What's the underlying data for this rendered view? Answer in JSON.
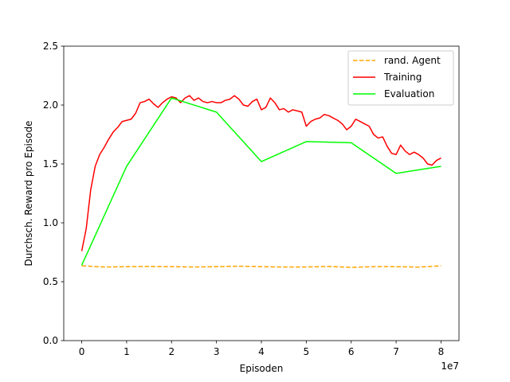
{
  "chart_data": {
    "type": "line",
    "title": "",
    "xlabel": "Episoden",
    "ylabel": "Durchsch. Reward pro Episode",
    "x_offset_label": "1e7",
    "xlim": [
      -0.4,
      8.4
    ],
    "ylim": [
      0.0,
      2.5
    ],
    "x_ticks": [
      0,
      1,
      2,
      3,
      4,
      5,
      6,
      7,
      8
    ],
    "x_tick_labels": [
      "0",
      "1",
      "2",
      "3",
      "4",
      "5",
      "6",
      "7",
      "8"
    ],
    "y_ticks": [
      0.0,
      0.5,
      1.0,
      1.5,
      2.0,
      2.5
    ],
    "y_tick_labels": [
      "0.0",
      "0.5",
      "1.0",
      "1.5",
      "2.0",
      "2.5"
    ],
    "grid": false,
    "legend_position": "top-right",
    "series": [
      {
        "name": "rand. Agent",
        "color": "#ffa500",
        "style": "dashed",
        "x": [
          0,
          0.5,
          1,
          1.5,
          2,
          2.5,
          3,
          3.5,
          4,
          4.5,
          5,
          5.5,
          6,
          6.5,
          7,
          7.5,
          8
        ],
        "y": [
          0.635,
          0.625,
          0.628,
          0.63,
          0.628,
          0.625,
          0.628,
          0.632,
          0.628,
          0.625,
          0.625,
          0.63,
          0.622,
          0.628,
          0.628,
          0.624,
          0.635
        ]
      },
      {
        "name": "Training",
        "color": "#ff0000",
        "style": "solid",
        "x": [
          0,
          0.1,
          0.2,
          0.3,
          0.4,
          0.5,
          0.6,
          0.7,
          0.8,
          0.9,
          1.0,
          1.1,
          1.2,
          1.3,
          1.4,
          1.5,
          1.6,
          1.7,
          1.8,
          1.9,
          2.0,
          2.1,
          2.2,
          2.3,
          2.4,
          2.5,
          2.6,
          2.7,
          2.8,
          2.9,
          3.0,
          3.1,
          3.2,
          3.3,
          3.4,
          3.5,
          3.6,
          3.7,
          3.8,
          3.9,
          4.0,
          4.1,
          4.2,
          4.3,
          4.4,
          4.5,
          4.6,
          4.7,
          4.8,
          4.9,
          5.0,
          5.1,
          5.2,
          5.3,
          5.4,
          5.5,
          5.6,
          5.7,
          5.8,
          5.9,
          6.0,
          6.1,
          6.2,
          6.3,
          6.4,
          6.5,
          6.6,
          6.7,
          6.8,
          6.9,
          7.0,
          7.1,
          7.2,
          7.3,
          7.4,
          7.5,
          7.6,
          7.7,
          7.8,
          7.9,
          8.0
        ],
        "y": [
          0.76,
          0.95,
          1.28,
          1.48,
          1.58,
          1.64,
          1.71,
          1.77,
          1.81,
          1.86,
          1.87,
          1.88,
          1.93,
          2.02,
          2.03,
          2.05,
          2.01,
          1.98,
          2.02,
          2.05,
          2.07,
          2.06,
          2.02,
          2.06,
          2.08,
          2.04,
          2.06,
          2.03,
          2.02,
          2.03,
          2.02,
          2.02,
          2.04,
          2.05,
          2.08,
          2.05,
          2.0,
          1.99,
          2.03,
          2.05,
          1.96,
          1.98,
          2.06,
          2.02,
          1.96,
          1.97,
          1.94,
          1.96,
          1.95,
          1.94,
          1.82,
          1.86,
          1.88,
          1.89,
          1.92,
          1.91,
          1.89,
          1.87,
          1.84,
          1.79,
          1.82,
          1.88,
          1.86,
          1.84,
          1.82,
          1.75,
          1.72,
          1.73,
          1.65,
          1.59,
          1.58,
          1.66,
          1.61,
          1.58,
          1.6,
          1.58,
          1.55,
          1.5,
          1.49,
          1.53,
          1.55
        ]
      },
      {
        "name": "Evaluation",
        "color": "#00ff00",
        "style": "solid",
        "x": [
          0,
          1,
          2,
          3,
          4,
          5,
          6,
          7,
          8
        ],
        "y": [
          0.64,
          1.48,
          2.06,
          1.94,
          1.52,
          1.69,
          1.68,
          1.42,
          1.48
        ]
      }
    ]
  }
}
